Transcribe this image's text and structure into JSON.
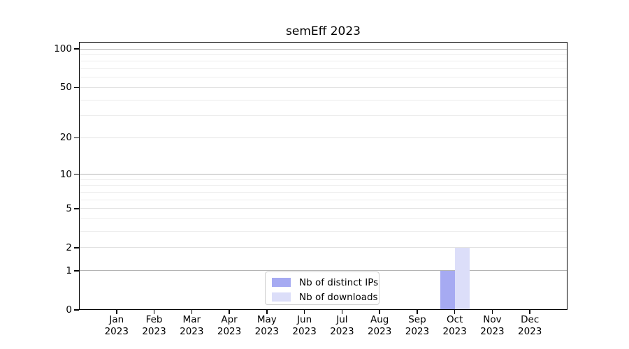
{
  "chart_data": {
    "type": "bar",
    "title": "semEff 2023",
    "x": {
      "categories": [
        "Jan",
        "Feb",
        "Mar",
        "Apr",
        "May",
        "Jun",
        "Jul",
        "Aug",
        "Sep",
        "Oct",
        "Nov",
        "Dec"
      ],
      "year_label": "2023"
    },
    "y": {
      "scale": "log1p",
      "ticks": [
        0,
        1,
        2,
        5,
        10,
        20,
        50,
        100
      ],
      "minor_gridlines": [
        3,
        4,
        6,
        7,
        8,
        9,
        30,
        40,
        60,
        70,
        80,
        90
      ],
      "decade_gridlines": [
        1,
        10,
        100
      ],
      "range": [
        0,
        113
      ],
      "grid": true
    },
    "series": [
      {
        "name": "Nb of distinct IPs",
        "color": "#a6aaf2",
        "values": [
          0,
          0,
          0,
          0,
          0,
          0,
          0,
          0,
          0,
          1,
          0,
          0
        ]
      },
      {
        "name": "Nb of downloads",
        "color": "#dcdef9",
        "values": [
          0,
          0,
          0,
          0,
          0,
          0,
          0,
          0,
          0,
          2,
          0,
          0
        ]
      }
    ],
    "legend": {
      "position": "lower center"
    }
  },
  "colors": {
    "background": "#ffffff",
    "axis": "#000000",
    "text": "#000000",
    "decade_gridline": "#b4b4b4",
    "labeled_gridline": "#e2e2e2",
    "minor_gridline": "#ededed",
    "legend_border": "#cfcfcf"
  }
}
